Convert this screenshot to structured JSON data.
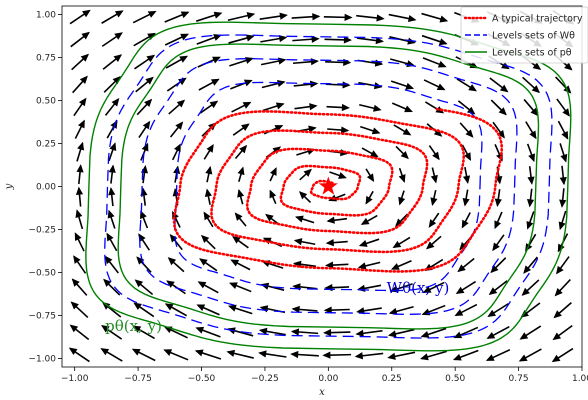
{
  "chart_data": {
    "type": "line",
    "title": "",
    "xlabel": "x",
    "ylabel": "y",
    "xlim": [
      -1.05,
      1.0
    ],
    "ylim": [
      -1.05,
      1.05
    ],
    "xticks": [
      "−1.00",
      "−0.75",
      "−0.50",
      "−0.25",
      "0.00",
      "0.25",
      "0.50",
      "0.75",
      "1.00"
    ],
    "yticks": [
      "−1.00",
      "−0.75",
      "−0.50",
      "−0.25",
      "0.00",
      "0.25",
      "0.50",
      "0.75",
      "1.00"
    ],
    "xtick_values": [
      -1.0,
      -0.75,
      -0.5,
      -0.25,
      0.0,
      0.25,
      0.5,
      0.75,
      1.0
    ],
    "ytick_values": [
      -1.0,
      -0.75,
      -0.5,
      -0.25,
      0.0,
      0.25,
      0.5,
      0.75,
      1.0
    ],
    "grid": false,
    "legend_position": "top-right",
    "legend": [
      {
        "label": "A typical trajectory",
        "style": "dotted",
        "color": "#ff0000"
      },
      {
        "label": "Levels sets of Wθ",
        "style": "dashed",
        "color": "#0000ff"
      },
      {
        "label": "Levels sets of pθ",
        "style": "solid",
        "color": "#008000"
      }
    ],
    "annotations": [
      {
        "text": "Wθ(x, y)",
        "x": 0.23,
        "y": -0.62,
        "color": "#0000cc"
      },
      {
        "text": "pθ(x, y)",
        "x": -0.88,
        "y": -0.84,
        "color": "#228b22"
      }
    ],
    "green_levels": [
      0.9,
      0.78
    ],
    "blue_levels": [
      0.83,
      0.7,
      0.57
    ],
    "trajectory_start": [
      0.3,
      0.5
    ],
    "equilibrium": [
      0.0,
      0.0
    ],
    "colors": {
      "trajectory": "#ff0000",
      "blue_level": "#0000ff",
      "green_level": "#008000",
      "arrows": "#000000"
    }
  }
}
